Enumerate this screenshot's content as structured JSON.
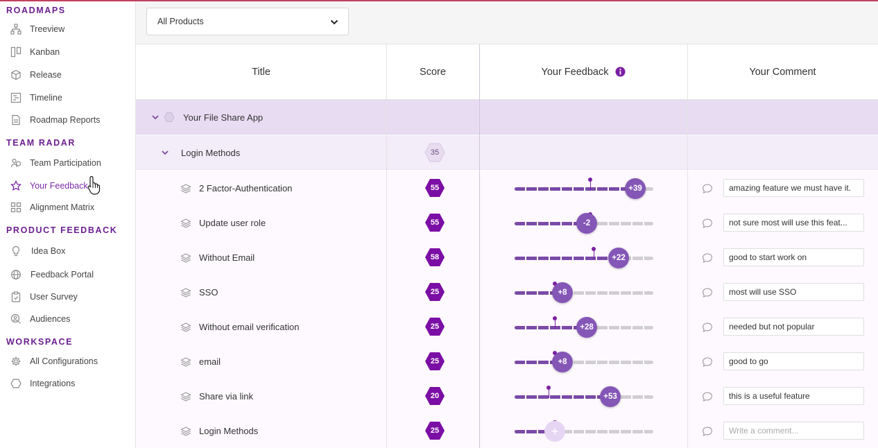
{
  "sidebar": {
    "sections": [
      {
        "title": "ROADMAPS",
        "items": [
          {
            "label": "Treeview",
            "icon": "hierarchy-icon"
          },
          {
            "label": "Kanban",
            "icon": "kanban-icon"
          },
          {
            "label": "Release",
            "icon": "cube-icon"
          },
          {
            "label": "Timeline",
            "icon": "timeline-icon"
          },
          {
            "label": "Roadmap Reports",
            "icon": "report-icon"
          }
        ]
      },
      {
        "title": "TEAM RADAR",
        "items": [
          {
            "label": "Team Participation",
            "icon": "participation-icon"
          },
          {
            "label": "Your Feedback",
            "icon": "star-icon",
            "active": true
          },
          {
            "label": "Alignment Matrix",
            "icon": "grid-icon"
          }
        ]
      },
      {
        "title": "PRODUCT FEEDBACK",
        "items": [
          {
            "label": "Idea Box",
            "icon": "bulb-icon"
          },
          {
            "label": "Feedback Portal",
            "icon": "globe-icon"
          },
          {
            "label": "User Survey",
            "icon": "clipboard-icon"
          },
          {
            "label": "Audiences",
            "icon": "audience-icon"
          }
        ]
      },
      {
        "title": "WORKSPACE",
        "items": [
          {
            "label": "All Configurations",
            "icon": "gear-icon"
          },
          {
            "label": "Integrations",
            "icon": "hexagon-icon"
          }
        ]
      }
    ]
  },
  "filter": {
    "selected": "All Products"
  },
  "table": {
    "headers": {
      "title": "Title",
      "score": "Score",
      "feedback": "Your Feedback",
      "comment": "Your Comment"
    },
    "group": {
      "title": "Your File Share App"
    },
    "subgroup": {
      "title": "Login Methods",
      "score": "35"
    },
    "rows": [
      {
        "title": "2 Factor-Authentication",
        "score": "55",
        "feedback": "+39",
        "level": 0.87,
        "marker": 0.545,
        "comment": "amazing feature we must have it."
      },
      {
        "title": "Update user role",
        "score": "55",
        "feedback": "-2",
        "level": 0.52,
        "marker": 0.545,
        "comment": "not sure most will use this feat..."
      },
      {
        "title": "Without Email",
        "score": "58",
        "feedback": "+22",
        "level": 0.75,
        "marker": 0.57,
        "comment": "good to start work on"
      },
      {
        "title": "SSO",
        "score": "25",
        "feedback": "+8",
        "level": 0.345,
        "marker": 0.29,
        "comment": "most will use SSO"
      },
      {
        "title": "Without email verification",
        "score": "25",
        "feedback": "+28",
        "level": 0.52,
        "marker": 0.29,
        "comment": "needed but not popular"
      },
      {
        "title": "email",
        "score": "25",
        "feedback": "+8",
        "level": 0.345,
        "marker": 0.29,
        "comment": "good to go"
      },
      {
        "title": "Share via link",
        "score": "20",
        "feedback": "+53",
        "level": 0.69,
        "marker": 0.245,
        "comment": "this is a useful feature"
      },
      {
        "title": "Login Methods",
        "score": "25",
        "feedback": "+",
        "level": 0.29,
        "marker": 0.29,
        "comment": "",
        "placeholder": "Write a comment..."
      }
    ]
  },
  "colors": {
    "accent": "#7b1fa2",
    "knob": "#8456b6",
    "section": "#6b1f8f",
    "group_row": "#e8dcf2",
    "sub_row": "#f3ecf9"
  }
}
